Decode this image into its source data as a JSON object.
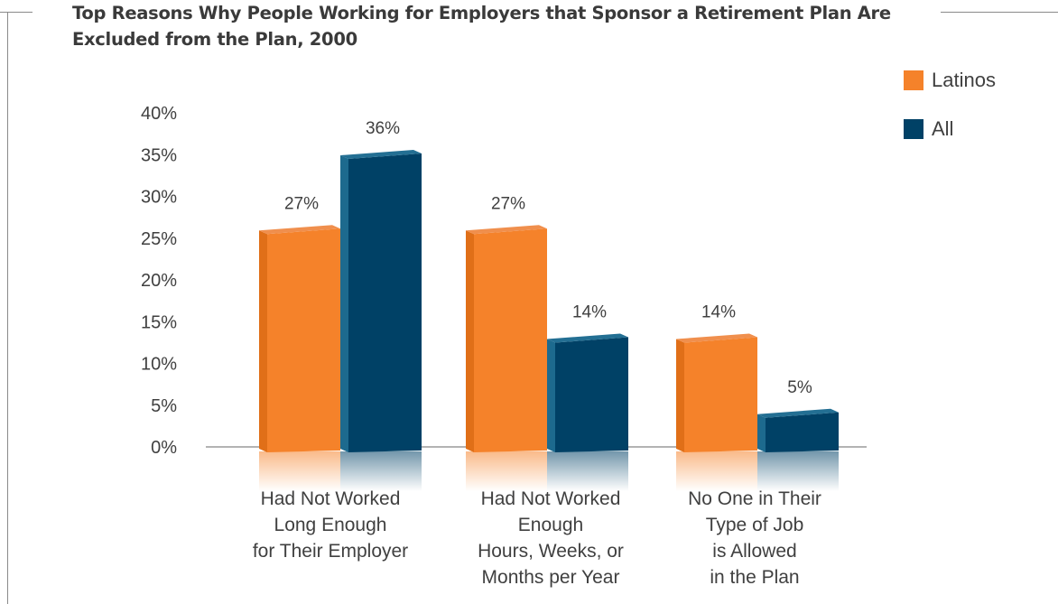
{
  "chart_data": {
    "type": "bar",
    "title": "Top Reasons Why People Working for Employers that Sponsor a Retirement Plan Are Excluded from the Plan, 2000",
    "title_lines": [
      "Top Reasons Why People Working for Employers that Sponsor a Retirement Plan Are",
      "Excluded from the Plan, 2000"
    ],
    "categories": [
      "Had Not Worked Long Enough for Their Employer",
      "Had Not Worked Enough Hours, Weeks, or Months per Year",
      "No One in Their Type of Job is Allowed in the Plan"
    ],
    "category_lines": [
      [
        "Had Not Worked",
        "Long Enough",
        "for Their Employer"
      ],
      [
        "Had Not Worked",
        "Enough",
        "Hours, Weeks, or",
        "Months per Year"
      ],
      [
        "No One in Their",
        "Type of Job",
        "is Allowed",
        "in the Plan"
      ]
    ],
    "series": [
      {
        "name": "Latinos",
        "values": [
          27,
          27,
          14
        ],
        "labels": [
          "27%",
          "27%",
          "14%"
        ],
        "color": "#f5822a"
      },
      {
        "name": "All",
        "values": [
          36,
          14,
          5
        ],
        "labels": [
          "36%",
          "14%",
          "5%"
        ],
        "color": "#004166"
      }
    ],
    "yticks": [
      "0%",
      "5%",
      "10%",
      "15%",
      "20%",
      "25%",
      "30%",
      "35%",
      "40%"
    ],
    "ylim": [
      0,
      40
    ],
    "legend_position": "top-right",
    "grid": false,
    "xlabel": "",
    "ylabel": ""
  }
}
